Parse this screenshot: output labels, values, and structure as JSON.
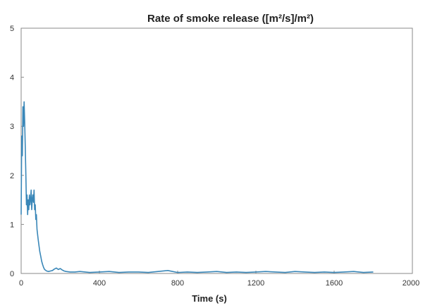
{
  "chart_data": {
    "type": "line",
    "title": "Rate of smoke release ([m²/s]/m²)",
    "xlabel": "Time (s)",
    "ylabel": "",
    "xlim": [
      0,
      2000
    ],
    "ylim": [
      0,
      5
    ],
    "xticks": [
      0,
      400,
      800,
      1200,
      1600,
      2000
    ],
    "yticks": [
      0,
      1,
      2,
      3,
      4,
      5
    ],
    "grid": false,
    "legend": "none",
    "series_color": "#3a87b8",
    "series": [
      {
        "x": [
          0,
          3,
          6,
          9,
          12,
          15,
          18,
          21,
          24,
          27,
          30,
          33,
          36,
          39,
          42,
          45,
          48,
          51,
          54,
          57,
          60,
          63,
          66,
          69,
          72,
          75,
          78,
          81,
          84,
          87,
          90,
          95,
          100,
          105,
          110,
          115,
          120,
          130,
          140,
          150,
          160,
          170,
          180,
          190,
          200,
          210,
          220,
          230,
          250,
          275,
          300,
          350,
          400,
          450,
          500,
          550,
          600,
          650,
          700,
          750,
          800,
          850,
          900,
          950,
          1000,
          1050,
          1100,
          1150,
          1200,
          1250,
          1300,
          1350,
          1400,
          1450,
          1500,
          1550,
          1600,
          1650,
          1700,
          1750,
          1800
        ],
        "y": [
          1.2,
          2.8,
          2.4,
          3.4,
          3.0,
          3.5,
          3.1,
          2.6,
          2.0,
          1.4,
          1.6,
          1.2,
          1.5,
          1.3,
          1.6,
          1.4,
          1.5,
          1.7,
          1.3,
          1.5,
          1.6,
          1.45,
          1.7,
          1.3,
          1.4,
          1.1,
          1.2,
          0.9,
          0.8,
          0.7,
          0.6,
          0.45,
          0.35,
          0.25,
          0.18,
          0.12,
          0.08,
          0.05,
          0.04,
          0.05,
          0.06,
          0.09,
          0.11,
          0.08,
          0.1,
          0.07,
          0.05,
          0.04,
          0.03,
          0.03,
          0.04,
          0.02,
          0.03,
          0.04,
          0.02,
          0.03,
          0.03,
          0.02,
          0.04,
          0.06,
          0.02,
          0.03,
          0.02,
          0.03,
          0.04,
          0.02,
          0.03,
          0.02,
          0.03,
          0.04,
          0.03,
          0.02,
          0.04,
          0.03,
          0.02,
          0.03,
          0.02,
          0.03,
          0.04,
          0.02,
          0.03
        ]
      }
    ]
  }
}
